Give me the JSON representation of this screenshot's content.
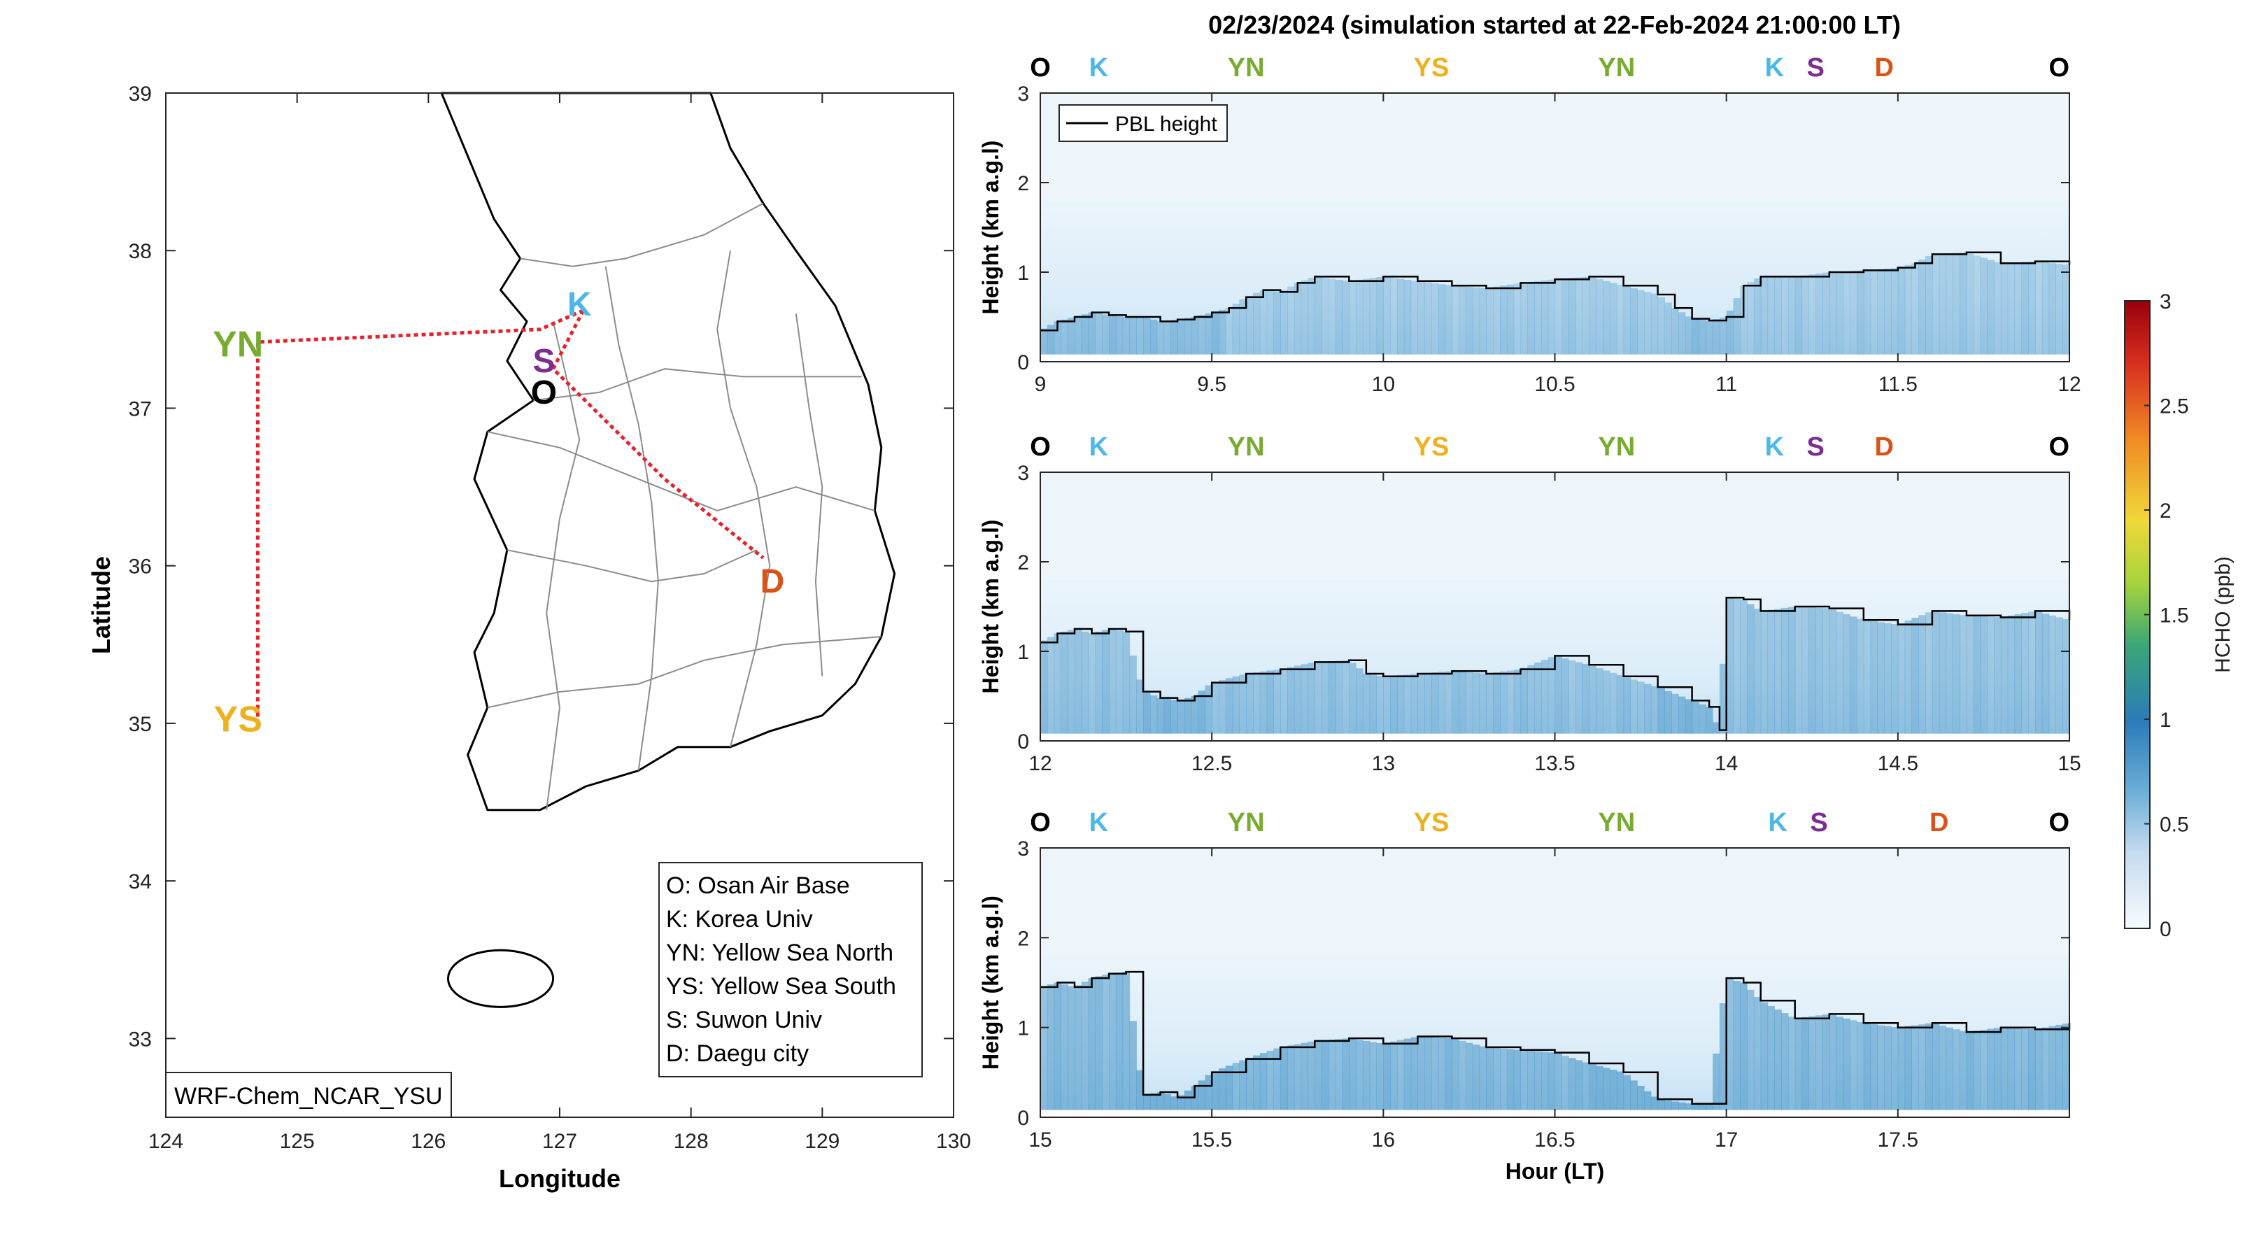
{
  "title": "02/23/2024 (simulation started at 22-Feb-2024 21:00:00 LT)",
  "map": {
    "xlabel": "Longitude",
    "ylabel": "Latitude",
    "xticks": [
      124,
      125,
      126,
      127,
      128,
      129,
      130
    ],
    "yticks": [
      33,
      34,
      35,
      36,
      37,
      38,
      39
    ],
    "xlim": [
      124,
      130
    ],
    "ylim": [
      32.5,
      39
    ],
    "model_label": "WRF-Chem_NCAR_YSU",
    "site_labels": [
      {
        "id": "O",
        "lon": 126.88,
        "lat": 37.1,
        "color": "#000000"
      },
      {
        "id": "K",
        "lon": 127.15,
        "lat": 37.66,
        "color": "#4db8e8"
      },
      {
        "id": "S",
        "lon": 126.88,
        "lat": 37.3,
        "color": "#7b2e8f"
      },
      {
        "id": "YN",
        "lon": 124.55,
        "lat": 37.4,
        "color": "#77ac30"
      },
      {
        "id": "YS",
        "lon": 124.55,
        "lat": 35.02,
        "color": "#edb120"
      },
      {
        "id": "D",
        "lon": 128.62,
        "lat": 35.9,
        "color": "#d95319"
      }
    ],
    "legend": [
      "O: Osan Air Base",
      "K: Korea Univ",
      "YN: Yellow Sea North",
      "YS: Yellow Sea South",
      "S: Suwon Univ",
      "D: Daegu city"
    ]
  },
  "chart_data": [
    {
      "type": "heatmap",
      "xlabel": "",
      "ylabel": "Height (km a.g.l)",
      "xlim": [
        9,
        12
      ],
      "ylim": [
        0,
        3
      ],
      "xticks": [
        "9",
        "9.5",
        "10",
        "10.5",
        "11",
        "11.5",
        "12"
      ],
      "yticks": [
        "0",
        "1",
        "2",
        "3"
      ],
      "legend": {
        "entries": [
          "PBL height"
        ],
        "placement": "top-left"
      },
      "top_labels": [
        {
          "text": "O",
          "x": 9.0,
          "color": "#000000"
        },
        {
          "text": "K",
          "x": 9.17,
          "color": "#4db8e8"
        },
        {
          "text": "YN",
          "x": 9.6,
          "color": "#77ac30"
        },
        {
          "text": "YS",
          "x": 10.14,
          "color": "#edb120"
        },
        {
          "text": "YN",
          "x": 10.68,
          "color": "#77ac30"
        },
        {
          "text": "K",
          "x": 11.14,
          "color": "#4db8e8"
        },
        {
          "text": "S",
          "x": 11.26,
          "color": "#7b2e8f"
        },
        {
          "text": "D",
          "x": 11.46,
          "color": "#d95319"
        },
        {
          "text": "O",
          "x": 11.97,
          "color": "#000000"
        }
      ],
      "series": [
        {
          "name": "PBL height",
          "x": [
            9.0,
            9.05,
            9.1,
            9.15,
            9.2,
            9.25,
            9.3,
            9.35,
            9.4,
            9.45,
            9.5,
            9.55,
            9.6,
            9.65,
            9.7,
            9.75,
            9.8,
            9.9,
            10.0,
            10.1,
            10.2,
            10.3,
            10.4,
            10.5,
            10.6,
            10.7,
            10.8,
            10.85,
            10.9,
            10.95,
            11.0,
            11.05,
            11.1,
            11.2,
            11.3,
            11.4,
            11.5,
            11.55,
            11.6,
            11.7,
            11.8,
            11.9,
            12.0
          ],
          "y": [
            0.35,
            0.45,
            0.5,
            0.55,
            0.52,
            0.5,
            0.5,
            0.45,
            0.47,
            0.5,
            0.55,
            0.6,
            0.72,
            0.8,
            0.78,
            0.88,
            0.95,
            0.9,
            0.95,
            0.9,
            0.85,
            0.82,
            0.88,
            0.92,
            0.95,
            0.85,
            0.75,
            0.6,
            0.48,
            0.46,
            0.5,
            0.85,
            0.95,
            0.95,
            1.0,
            1.02,
            1.05,
            1.1,
            1.2,
            1.22,
            1.1,
            1.12,
            1.08
          ]
        }
      ],
      "colorbar": {
        "label": "HCHO (ppb)",
        "range": [
          0,
          3
        ],
        "ticks": [
          "0",
          "0.5",
          "1",
          "1.5",
          "2",
          "2.5",
          "3"
        ]
      }
    },
    {
      "type": "heatmap",
      "xlabel": "",
      "ylabel": "Height (km a.g.l)",
      "xlim": [
        12,
        15
      ],
      "ylim": [
        0,
        3
      ],
      "xticks": [
        "12",
        "12.5",
        "13",
        "13.5",
        "14",
        "14.5",
        "15"
      ],
      "yticks": [
        "0",
        "1",
        "2",
        "3"
      ],
      "top_labels": [
        {
          "text": "O",
          "x": 12.0,
          "color": "#000000"
        },
        {
          "text": "K",
          "x": 12.17,
          "color": "#4db8e8"
        },
        {
          "text": "YN",
          "x": 12.6,
          "color": "#77ac30"
        },
        {
          "text": "YS",
          "x": 13.14,
          "color": "#edb120"
        },
        {
          "text": "YN",
          "x": 13.68,
          "color": "#77ac30"
        },
        {
          "text": "K",
          "x": 14.14,
          "color": "#4db8e8"
        },
        {
          "text": "S",
          "x": 14.26,
          "color": "#7b2e8f"
        },
        {
          "text": "D",
          "x": 14.46,
          "color": "#d95319"
        },
        {
          "text": "O",
          "x": 14.97,
          "color": "#000000"
        }
      ],
      "series": [
        {
          "name": "PBL height",
          "x": [
            12.0,
            12.05,
            12.1,
            12.15,
            12.2,
            12.25,
            12.3,
            12.35,
            12.4,
            12.45,
            12.5,
            12.6,
            12.7,
            12.8,
            12.9,
            12.95,
            13.0,
            13.1,
            13.2,
            13.3,
            13.4,
            13.5,
            13.6,
            13.7,
            13.8,
            13.9,
            13.95,
            13.98,
            14.0,
            14.05,
            14.1,
            14.2,
            14.3,
            14.4,
            14.5,
            14.6,
            14.7,
            14.8,
            14.9,
            15.0
          ],
          "y": [
            1.1,
            1.2,
            1.25,
            1.2,
            1.25,
            1.22,
            0.55,
            0.48,
            0.45,
            0.5,
            0.65,
            0.75,
            0.8,
            0.88,
            0.9,
            0.75,
            0.72,
            0.75,
            0.78,
            0.75,
            0.8,
            0.95,
            0.85,
            0.72,
            0.6,
            0.45,
            0.38,
            0.12,
            1.6,
            1.58,
            1.45,
            1.5,
            1.48,
            1.35,
            1.3,
            1.45,
            1.4,
            1.38,
            1.45,
            1.35
          ]
        }
      ]
    },
    {
      "type": "heatmap",
      "xlabel": "Hour (LT)",
      "ylabel": "Height (km a.g.l)",
      "xlim": [
        15,
        18
      ],
      "ylim": [
        0,
        3
      ],
      "xticks": [
        "15",
        "15.5",
        "16",
        "16.5",
        "17",
        "17.5"
      ],
      "yticks": [
        "0",
        "1",
        "2",
        "3"
      ],
      "top_labels": [
        {
          "text": "O",
          "x": 15.0,
          "color": "#000000"
        },
        {
          "text": "K",
          "x": 15.17,
          "color": "#4db8e8"
        },
        {
          "text": "YN",
          "x": 15.6,
          "color": "#77ac30"
        },
        {
          "text": "YS",
          "x": 16.14,
          "color": "#edb120"
        },
        {
          "text": "YN",
          "x": 16.68,
          "color": "#77ac30"
        },
        {
          "text": "K",
          "x": 17.15,
          "color": "#4db8e8"
        },
        {
          "text": "S",
          "x": 17.27,
          "color": "#7b2e8f"
        },
        {
          "text": "D",
          "x": 17.62,
          "color": "#d95319"
        },
        {
          "text": "O",
          "x": 17.97,
          "color": "#000000"
        }
      ],
      "series": [
        {
          "name": "PBL height",
          "x": [
            15.0,
            15.05,
            15.1,
            15.15,
            15.2,
            15.25,
            15.3,
            15.35,
            15.4,
            15.45,
            15.5,
            15.6,
            15.7,
            15.8,
            15.9,
            16.0,
            16.1,
            16.2,
            16.3,
            16.4,
            16.5,
            16.6,
            16.7,
            16.8,
            16.9,
            16.95,
            17.0,
            17.05,
            17.1,
            17.2,
            17.3,
            17.4,
            17.5,
            17.6,
            17.7,
            17.8,
            17.9,
            18.0
          ],
          "y": [
            1.45,
            1.5,
            1.45,
            1.55,
            1.6,
            1.62,
            0.25,
            0.28,
            0.22,
            0.35,
            0.5,
            0.65,
            0.78,
            0.85,
            0.88,
            0.82,
            0.9,
            0.88,
            0.78,
            0.75,
            0.72,
            0.6,
            0.5,
            0.2,
            0.15,
            0.15,
            1.55,
            1.5,
            1.3,
            1.1,
            1.15,
            1.05,
            1.0,
            1.05,
            0.95,
            1.0,
            0.98,
            1.05
          ]
        }
      ]
    }
  ]
}
